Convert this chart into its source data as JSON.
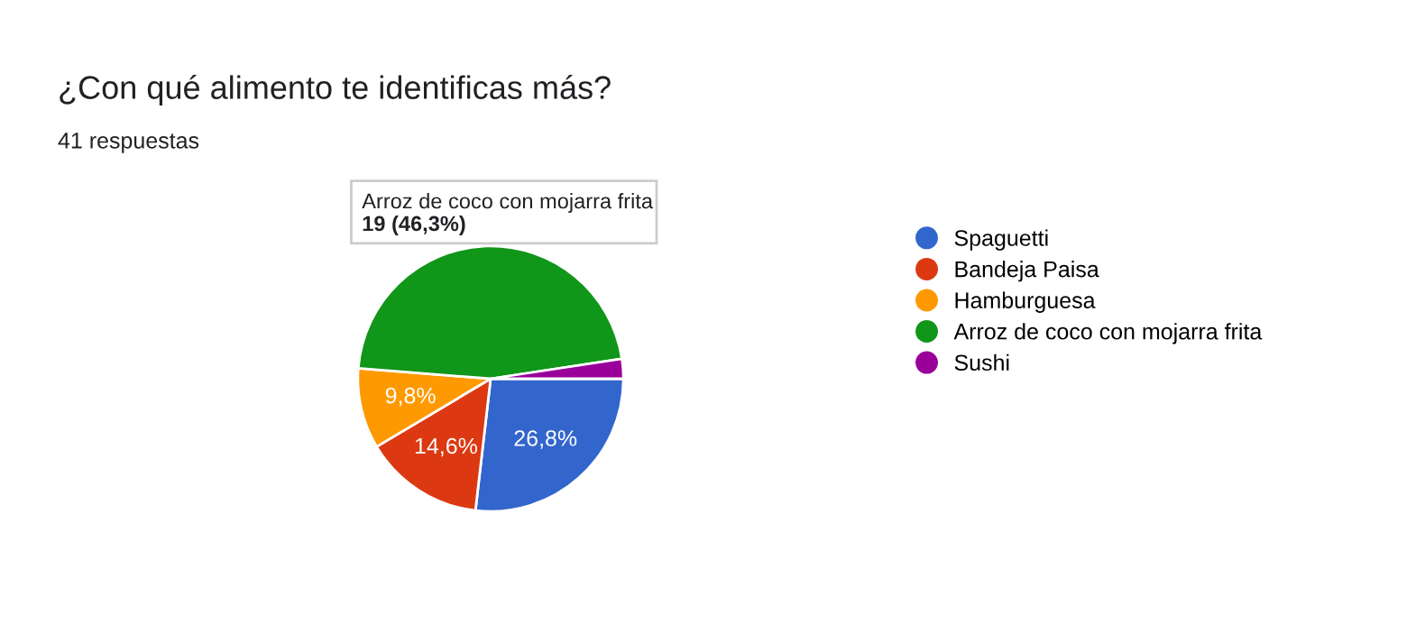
{
  "chart_data": {
    "type": "pie",
    "title": "¿Con qué alimento te identificas más?",
    "subtitle": "41 respuestas",
    "categories": [
      "Spaguetti",
      "Bandeja Paisa",
      "Hamburguesa",
      "Arroz de coco con mojarra frita",
      "Sushi"
    ],
    "values": [
      26.8,
      14.6,
      9.8,
      46.3,
      2.4
    ],
    "colors": [
      "#3366cc",
      "#dc3912",
      "#ff9900",
      "#109618",
      "#990099"
    ],
    "value_labels": [
      "26,8%",
      "14,6%",
      "9,8%",
      null,
      null
    ],
    "annotations": [
      "Arroz de coco con mojarra frita",
      "19 (46,3%)"
    ],
    "legend": "right"
  }
}
